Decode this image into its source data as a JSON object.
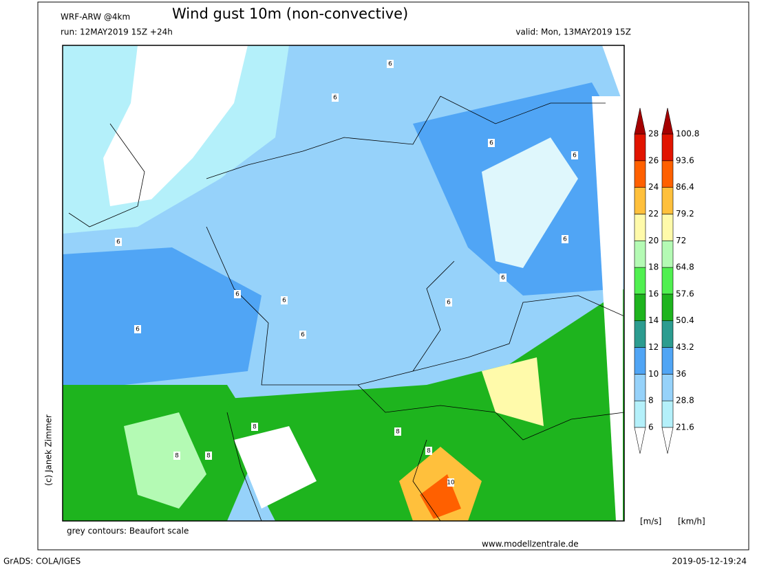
{
  "header": {
    "model": "WRF-ARW @4km",
    "title": "Wind gust 10m (non-convective)",
    "run": "run: 12MAY2019 15Z +24h",
    "valid": "valid: Mon, 13MAY2019 15Z"
  },
  "map": {
    "contour_labels": [
      "6",
      "6",
      "6",
      "6",
      "6",
      "6",
      "6",
      "6",
      "6",
      "8",
      "8",
      "8",
      "8",
      "8",
      "10",
      "6",
      "6",
      "6"
    ]
  },
  "colorbar": {
    "ms_labels": [
      "6",
      "8",
      "10",
      "12",
      "14",
      "16",
      "18",
      "20",
      "22",
      "24",
      "26",
      "28"
    ],
    "kmh_labels": [
      "21.6",
      "28.8",
      "36",
      "43.2",
      "50.4",
      "57.6",
      "64.8",
      "72",
      "79.2",
      "86.4",
      "93.6",
      "100.8"
    ],
    "colors": [
      "#b4f0fa",
      "#96d2fa",
      "#50a5f5",
      "#2c9c90",
      "#1eb41e",
      "#50f050",
      "#b4fab4",
      "#fffaaa",
      "#ffc03c",
      "#ff6000",
      "#e11400"
    ],
    "below_color": "#ffffff",
    "above_color": "#a50000",
    "unit_ms": "[m/s]",
    "unit_kmh": "[km/h]"
  },
  "credit": "(c) Janek Zimmer",
  "note": "grey contours: Beaufort scale",
  "website": "www.modellzentrale.de",
  "footer": {
    "software": "GrADS: COLA/IGES",
    "timestamp": "2019-05-12-19:24"
  }
}
